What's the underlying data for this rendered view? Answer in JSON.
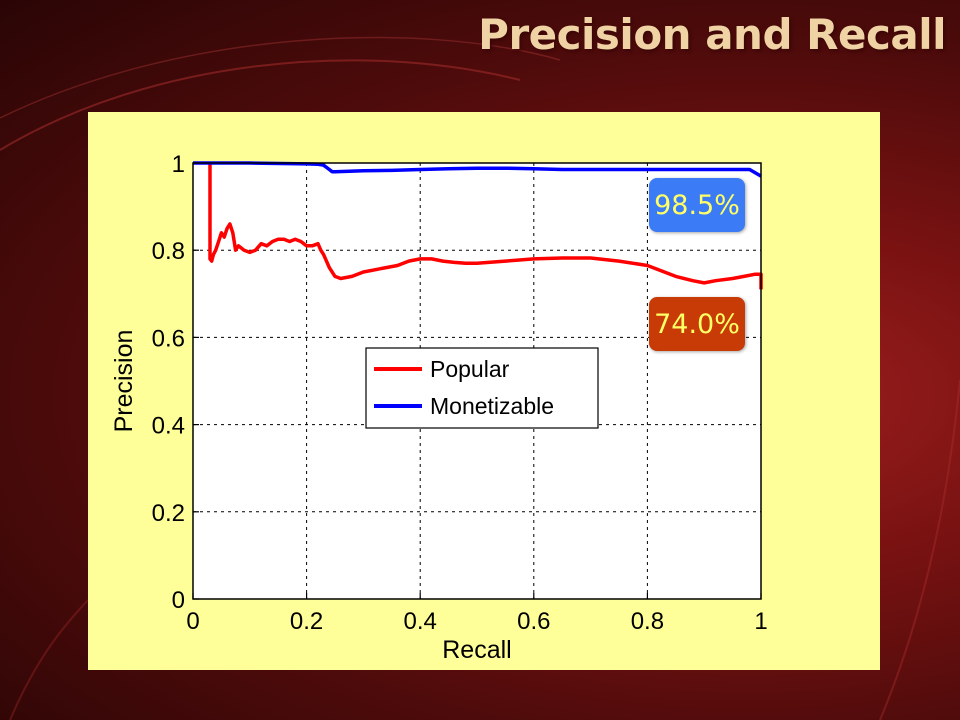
{
  "slide": {
    "title": "Precision and Recall"
  },
  "callouts": {
    "monetizable": {
      "text": "98.5%",
      "bg": "#3b7bf5",
      "fg": "#ffff66"
    },
    "popular": {
      "text": "74.0%",
      "bg": "#c83a06",
      "fg": "#ffff66"
    }
  },
  "chart_data": {
    "type": "line",
    "title": "",
    "xlabel": "Recall",
    "ylabel": "Precision",
    "xlim": [
      0,
      1
    ],
    "ylim": [
      0,
      1
    ],
    "xticks": [
      0,
      0.2,
      0.4,
      0.6,
      0.8,
      1
    ],
    "xtick_labels": [
      "0",
      "0.2",
      "0.4",
      "0.6",
      "0.8",
      "1"
    ],
    "yticks": [
      0,
      0.2,
      0.4,
      0.6,
      0.8,
      1
    ],
    "ytick_labels": [
      "0",
      "0.2",
      "0.4",
      "0.6",
      "0.8",
      "1"
    ],
    "grid": true,
    "legend": "center-left",
    "series": [
      {
        "name": "Popular",
        "color": "#ff0000",
        "x": [
          0.03,
          0.03,
          0.033,
          0.036,
          0.04,
          0.045,
          0.05,
          0.055,
          0.06,
          0.065,
          0.07,
          0.075,
          0.08,
          0.09,
          0.1,
          0.11,
          0.12,
          0.13,
          0.14,
          0.15,
          0.16,
          0.17,
          0.18,
          0.19,
          0.2,
          0.21,
          0.22,
          0.225,
          0.23,
          0.24,
          0.25,
          0.26,
          0.28,
          0.3,
          0.32,
          0.34,
          0.36,
          0.38,
          0.4,
          0.42,
          0.44,
          0.46,
          0.48,
          0.5,
          0.55,
          0.6,
          0.65,
          0.7,
          0.75,
          0.8,
          0.85,
          0.88,
          0.9,
          0.92,
          0.95,
          0.97,
          0.99,
          1.0,
          1.0
        ],
        "y": [
          1.0,
          0.78,
          0.775,
          0.79,
          0.8,
          0.82,
          0.84,
          0.83,
          0.85,
          0.86,
          0.84,
          0.8,
          0.81,
          0.8,
          0.795,
          0.8,
          0.815,
          0.81,
          0.82,
          0.825,
          0.825,
          0.82,
          0.825,
          0.82,
          0.81,
          0.81,
          0.815,
          0.8,
          0.79,
          0.76,
          0.74,
          0.735,
          0.74,
          0.75,
          0.755,
          0.76,
          0.765,
          0.775,
          0.78,
          0.78,
          0.775,
          0.772,
          0.77,
          0.77,
          0.775,
          0.78,
          0.782,
          0.782,
          0.775,
          0.765,
          0.74,
          0.73,
          0.725,
          0.73,
          0.735,
          0.74,
          0.745,
          0.745,
          0.71
        ]
      },
      {
        "name": "Monetizable",
        "color": "#0000ff",
        "x": [
          0.0,
          0.1,
          0.2,
          0.22,
          0.23,
          0.235,
          0.24,
          0.245,
          0.25,
          0.3,
          0.35,
          0.4,
          0.45,
          0.5,
          0.55,
          0.6,
          0.65,
          0.7,
          0.8,
          0.9,
          0.98,
          1.0
        ],
        "y": [
          1.0,
          1.0,
          0.998,
          0.997,
          0.995,
          0.99,
          0.985,
          0.98,
          0.98,
          0.982,
          0.983,
          0.985,
          0.987,
          0.988,
          0.988,
          0.987,
          0.985,
          0.985,
          0.985,
          0.985,
          0.985,
          0.97
        ]
      }
    ]
  }
}
